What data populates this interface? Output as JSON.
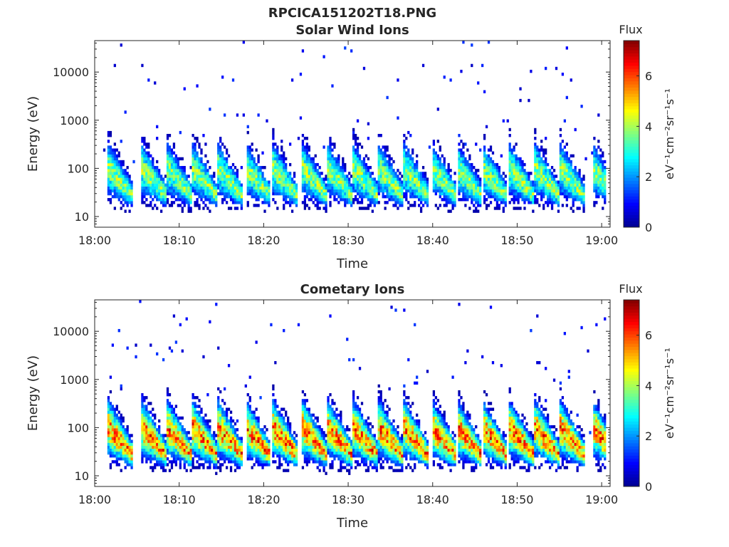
{
  "figure_title": "RPCICA151202T18.PNG",
  "colormap": [
    "#00008f",
    "#0000ff",
    "#0080ff",
    "#00ffff",
    "#80ff80",
    "#ffff00",
    "#ff8000",
    "#ff0000",
    "#800000"
  ],
  "chart_data": [
    {
      "type": "heatmap",
      "title": "Solar Wind Ions",
      "xlabel": "Time",
      "ylabel": "Energy (eV)",
      "x_range": [
        "18:00",
        "19:01"
      ],
      "xticks": [
        "18:00",
        "18:10",
        "18:20",
        "18:30",
        "18:40",
        "18:50",
        "19:00"
      ],
      "y_scale": "log",
      "ylim": [
        6,
        45000
      ],
      "yticks": [
        "10",
        "100",
        "1000",
        "10000"
      ],
      "colorbar": {
        "label": "Flux",
        "unit": "eV⁻¹cm⁻²sr⁻¹s⁻¹",
        "range": [
          0,
          7.4
        ],
        "ticks": [
          "0",
          "2",
          "4",
          "6"
        ]
      },
      "pattern": {
        "burst_start_minutes": [
          1.5,
          5.5,
          8.5,
          11.5,
          14.5,
          17.8,
          21.0,
          24.5,
          27.5,
          30.5,
          33.5,
          36.5,
          39.8,
          42.8,
          45.8,
          49.0,
          52.0,
          55.0,
          58.8
        ],
        "burst_peak_energy_ev": 40,
        "burst_peak_flux": 4.8,
        "background_scatter_flux": 1.0
      }
    },
    {
      "type": "heatmap",
      "title": "Cometary Ions",
      "xlabel": "Time",
      "ylabel": "Energy (eV)",
      "x_range": [
        "18:00",
        "19:01"
      ],
      "xticks": [
        "18:00",
        "18:10",
        "18:20",
        "18:30",
        "18:40",
        "18:50",
        "19:00"
      ],
      "y_scale": "log",
      "ylim": [
        6,
        45000
      ],
      "yticks": [
        "10",
        "100",
        "1000",
        "10000"
      ],
      "colorbar": {
        "label": "Flux",
        "unit": "eV⁻¹cm⁻²sr⁻¹s⁻¹",
        "range": [
          0,
          7.4
        ],
        "ticks": [
          "0",
          "2",
          "4",
          "6"
        ]
      },
      "pattern": {
        "burst_start_minutes": [
          1.5,
          5.5,
          8.5,
          11.5,
          14.5,
          17.8,
          21.0,
          24.5,
          27.5,
          30.5,
          33.5,
          36.5,
          39.8,
          42.8,
          45.8,
          49.0,
          52.0,
          55.0,
          58.8
        ],
        "burst_peak_energy_ev": 40,
        "burst_peak_flux": 7.0,
        "background_scatter_flux": 1.0
      }
    }
  ]
}
